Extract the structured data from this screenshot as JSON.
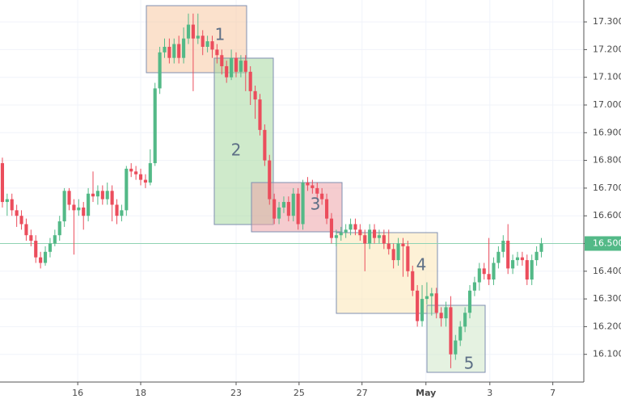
{
  "chart_data": {
    "type": "candlestick",
    "x": [
      0,
      1,
      2,
      3,
      4,
      5,
      6,
      7,
      8,
      9,
      10,
      11,
      12,
      13,
      14,
      15,
      16,
      17,
      18,
      19,
      20,
      21,
      22,
      23,
      24,
      25,
      26,
      27,
      28,
      29,
      30,
      31,
      32,
      33,
      34,
      35,
      36,
      37,
      38,
      39,
      40,
      41,
      42,
      43,
      44,
      45,
      46,
      47,
      48,
      49,
      50,
      51,
      52,
      53,
      54,
      55,
      56,
      57,
      58,
      59,
      60,
      61,
      62,
      63,
      64,
      65,
      66,
      67,
      68,
      69,
      70,
      71,
      72,
      73,
      74,
      75,
      76,
      77,
      78,
      79,
      80,
      81,
      82,
      83,
      84,
      85,
      86,
      87,
      88,
      89,
      90,
      91,
      92,
      93,
      94,
      95,
      96,
      97,
      98,
      99,
      100,
      101,
      102,
      103,
      104,
      105,
      106,
      107,
      108,
      109,
      110,
      111,
      112,
      113
    ],
    "open": [
      16.79,
      16.65,
      16.66,
      16.62,
      16.6,
      16.57,
      16.53,
      16.51,
      16.45,
      16.43,
      16.47,
      16.5,
      16.53,
      16.58,
      16.69,
      16.64,
      16.62,
      16.63,
      16.6,
      16.68,
      16.67,
      16.69,
      16.66,
      16.69,
      16.64,
      16.6,
      16.62,
      16.77,
      16.76,
      16.75,
      16.73,
      16.72,
      16.79,
      17.06,
      17.19,
      17.21,
      17.17,
      17.22,
      17.17,
      17.24,
      17.29,
      17.24,
      17.25,
      17.21,
      17.23,
      17.2,
      17.18,
      17.14,
      17.1,
      17.17,
      17.12,
      17.16,
      17.12,
      17.05,
      17.02,
      16.91,
      16.8,
      16.66,
      16.59,
      16.63,
      16.65,
      16.6,
      16.68,
      16.57,
      16.72,
      16.71,
      16.7,
      16.68,
      16.66,
      16.59,
      16.52,
      16.53,
      16.54,
      16.55,
      16.57,
      16.55,
      16.53,
      16.5,
      16.55,
      16.52,
      16.53,
      16.5,
      16.48,
      16.44,
      16.5,
      16.49,
      16.4,
      16.33,
      16.22,
      16.3,
      16.31,
      16.32,
      16.25,
      16.23,
      16.27,
      16.1,
      16.15,
      16.2,
      16.25,
      16.33,
      16.36,
      16.41,
      16.39,
      16.37,
      16.43,
      16.47,
      16.51,
      16.41,
      16.44,
      16.45,
      16.44,
      16.37,
      16.44,
      16.47
    ],
    "high": [
      16.81,
      16.68,
      16.68,
      16.64,
      16.62,
      16.59,
      16.55,
      16.53,
      16.47,
      16.49,
      16.52,
      16.55,
      16.6,
      16.7,
      16.7,
      16.66,
      16.66,
      16.65,
      16.7,
      16.76,
      16.71,
      16.71,
      16.72,
      16.71,
      16.66,
      16.64,
      16.78,
      16.79,
      16.78,
      16.77,
      16.75,
      16.84,
      17.08,
      17.21,
      17.24,
      17.24,
      17.24,
      17.25,
      17.28,
      17.33,
      17.33,
      17.33,
      17.27,
      17.25,
      17.25,
      17.22,
      17.2,
      17.16,
      17.2,
      17.19,
      17.18,
      17.18,
      17.14,
      17.07,
      17.04,
      16.93,
      16.82,
      16.68,
      16.65,
      16.67,
      16.67,
      16.7,
      16.7,
      16.73,
      16.74,
      16.73,
      16.72,
      16.7,
      16.68,
      16.61,
      16.55,
      16.56,
      16.57,
      16.59,
      16.59,
      16.57,
      16.55,
      16.57,
      16.57,
      16.55,
      16.55,
      16.55,
      16.5,
      16.52,
      16.52,
      16.51,
      16.42,
      16.35,
      16.35,
      16.36,
      16.34,
      16.34,
      16.27,
      16.29,
      16.31,
      16.17,
      16.22,
      16.27,
      16.35,
      16.38,
      16.43,
      16.43,
      16.52,
      16.45,
      16.49,
      16.53,
      16.57,
      16.46,
      16.47,
      16.47,
      16.46,
      16.46,
      16.49,
      16.52
    ],
    "low": [
      16.63,
      16.6,
      16.6,
      16.56,
      16.55,
      16.51,
      16.49,
      16.43,
      16.41,
      16.42,
      16.45,
      16.49,
      16.51,
      16.56,
      16.62,
      16.46,
      16.6,
      16.55,
      16.58,
      16.65,
      16.64,
      16.64,
      16.64,
      16.58,
      16.57,
      16.58,
      16.6,
      16.74,
      16.73,
      16.71,
      16.7,
      16.71,
      16.78,
      17.04,
      17.17,
      17.15,
      17.15,
      17.15,
      17.15,
      17.22,
      17.05,
      17.22,
      17.18,
      17.19,
      17.17,
      17.15,
      17.11,
      17.08,
      17.09,
      17.1,
      17.1,
      17.05,
      17.0,
      16.95,
      16.89,
      16.78,
      16.64,
      16.57,
      16.57,
      16.61,
      16.58,
      16.58,
      16.55,
      16.55,
      16.69,
      16.68,
      16.66,
      16.64,
      16.57,
      16.5,
      16.49,
      16.51,
      16.52,
      16.53,
      16.53,
      16.51,
      16.4,
      16.48,
      16.5,
      16.5,
      16.48,
      16.46,
      16.41,
      16.42,
      16.38,
      16.38,
      16.31,
      16.2,
      16.2,
      16.28,
      16.24,
      16.23,
      16.2,
      16.2,
      16.05,
      16.08,
      16.13,
      16.18,
      16.23,
      16.31,
      16.33,
      16.37,
      16.35,
      16.35,
      16.41,
      16.45,
      16.39,
      16.39,
      16.42,
      16.42,
      16.35,
      16.35,
      16.42,
      16.45
    ],
    "close": [
      16.65,
      16.66,
      16.62,
      16.6,
      16.57,
      16.53,
      16.51,
      16.45,
      16.43,
      16.47,
      16.5,
      16.53,
      16.58,
      16.69,
      16.64,
      16.62,
      16.63,
      16.6,
      16.68,
      16.67,
      16.69,
      16.66,
      16.69,
      16.64,
      16.6,
      16.62,
      16.77,
      16.76,
      16.75,
      16.73,
      16.72,
      16.79,
      17.06,
      17.19,
      17.21,
      17.17,
      17.22,
      17.17,
      17.24,
      17.29,
      17.24,
      17.25,
      17.21,
      17.23,
      17.2,
      17.18,
      17.14,
      17.1,
      17.17,
      17.12,
      17.16,
      17.12,
      17.05,
      17.02,
      16.91,
      16.8,
      16.66,
      16.59,
      16.63,
      16.65,
      16.6,
      16.68,
      16.57,
      16.72,
      16.71,
      16.7,
      16.68,
      16.66,
      16.59,
      16.52,
      16.53,
      16.54,
      16.55,
      16.57,
      16.55,
      16.53,
      16.5,
      16.55,
      16.52,
      16.53,
      16.5,
      16.48,
      16.44,
      16.5,
      16.49,
      16.4,
      16.33,
      16.22,
      16.3,
      16.31,
      16.32,
      16.25,
      16.23,
      16.27,
      16.1,
      16.15,
      16.2,
      16.25,
      16.33,
      16.36,
      16.41,
      16.39,
      16.37,
      16.43,
      16.47,
      16.51,
      16.41,
      16.44,
      16.45,
      16.44,
      16.37,
      16.44,
      16.47,
      16.5
    ],
    "up_color": "#53b987",
    "down_color": "#eb4d5c",
    "xlim": [
      -0.5,
      121.9
    ],
    "xticks": [
      {
        "value": 15.8,
        "label": "16"
      },
      {
        "value": 29.0,
        "label": "18"
      },
      {
        "value": 49.0,
        "label": "23"
      },
      {
        "value": 62.2,
        "label": "25"
      },
      {
        "value": 75.4,
        "label": "27"
      },
      {
        "value": 88.8,
        "label": "May"
      },
      {
        "value": 102.2,
        "label": "3"
      },
      {
        "value": 115.4,
        "label": "7"
      }
    ],
    "ylim": [
      16.0,
      17.379
    ],
    "yticks": [
      {
        "value": 17.3,
        "label": "17.300"
      },
      {
        "value": 17.2,
        "label": "17.200"
      },
      {
        "value": 17.1,
        "label": "17.100"
      },
      {
        "value": 17.0,
        "label": "17.000"
      },
      {
        "value": 16.9,
        "label": "16.900"
      },
      {
        "value": 16.8,
        "label": "16.800"
      },
      {
        "value": 16.7,
        "label": "16.700"
      },
      {
        "value": 16.6,
        "label": "16.600"
      },
      {
        "value": 16.5,
        "label": "16.500"
      },
      {
        "value": 16.4,
        "label": "16.400"
      },
      {
        "value": 16.3,
        "label": "16.300"
      },
      {
        "value": 16.2,
        "label": "16.200"
      },
      {
        "value": 16.1,
        "label": "16.100"
      }
    ],
    "last_price": {
      "value": 16.5,
      "label": "16.500"
    },
    "grid": true,
    "annotations": [
      "1",
      "2",
      "3",
      "4",
      "5"
    ]
  }
}
